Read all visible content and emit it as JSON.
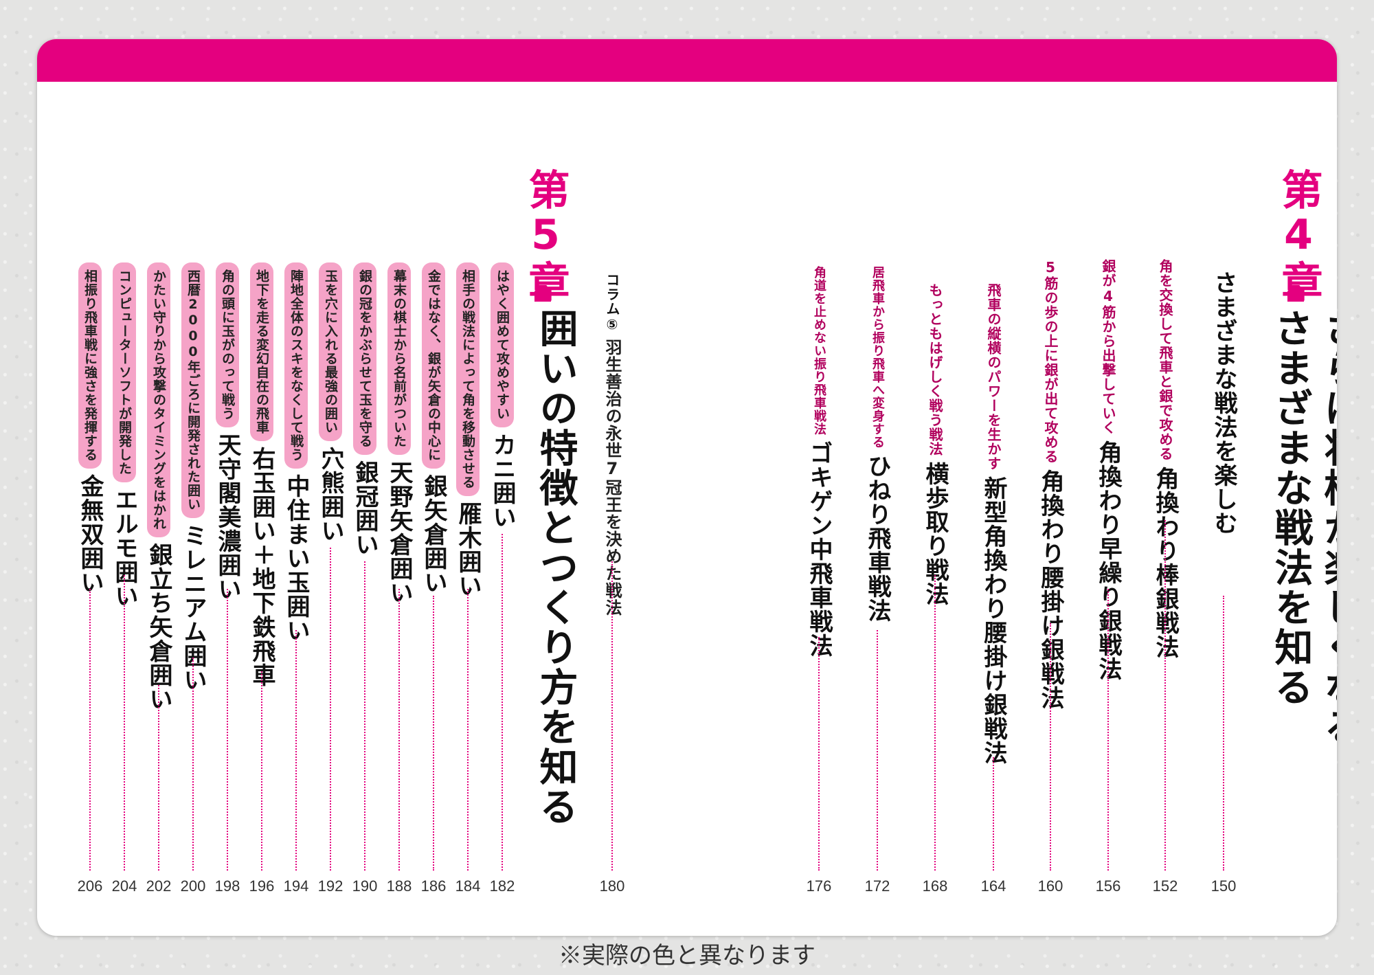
{
  "colors": {
    "accent": "#e4007f",
    "pill": "#f5a3c7",
    "sub_text": "#b1005d"
  },
  "disclaimer": "※実際の色と異なります",
  "chapter4": {
    "number": "第4章",
    "title_line1": "さらに将棋が楽しくなる",
    "title_line2": "さまざまな戦法を知る",
    "entries": [
      {
        "sub": "",
        "title": "さまざまな戦法を楽しむ",
        "page": "150"
      },
      {
        "sub": "角を交換して飛車と銀で攻める",
        "title": "角換わり棒銀戦法",
        "page": "152"
      },
      {
        "sub": "銀が4筋から出撃していく",
        "title": "角換わり早繰り銀戦法",
        "page": "156"
      },
      {
        "sub": "5筋の歩の上に銀が出て攻める",
        "title": "角換わり腰掛け銀戦法",
        "page": "160"
      },
      {
        "sub": "飛車の縦横のパワーを生かす",
        "title": "新型角換わり腰掛け銀戦法",
        "page": "164"
      },
      {
        "sub": "もっともはげしく戦う戦法",
        "title": "横歩取り戦法",
        "page": "168"
      },
      {
        "sub": "居飛車から振り飛車へ変身する",
        "title": "ひねり飛車戦法",
        "page": "172"
      },
      {
        "sub": "角道を止めない振り飛車戦法",
        "title": "ゴキゲン中飛車戦法",
        "page": "176"
      }
    ]
  },
  "column5": {
    "label": "コラム⑤",
    "title": "羽生善治の永世7冠王を決めた戦法",
    "page": "180"
  },
  "chapter5": {
    "number": "第5章",
    "title": "囲いの特徴とつくり方を知る",
    "entries": [
      {
        "sub": "はやく囲めて攻めやすい",
        "title": "カニ囲い",
        "page": "182"
      },
      {
        "sub": "相手の戦法によって角を移動させる",
        "title": "雁木囲い",
        "page": "184"
      },
      {
        "sub": "金ではなく、銀が矢倉の中心に",
        "title": "銀矢倉囲い",
        "page": "186"
      },
      {
        "sub": "幕末の棋士から名前がついた",
        "title": "天野矢倉囲い",
        "page": "188"
      },
      {
        "sub": "銀の冠をかぶらせて玉を守る",
        "title": "銀冠囲い",
        "page": "190"
      },
      {
        "sub": "玉を穴に入れる最強の囲い",
        "title": "穴熊囲い",
        "page": "192"
      },
      {
        "sub": "陣地全体のスキをなくして戦う",
        "title": "中住まい玉囲い",
        "page": "194"
      },
      {
        "sub": "地下を走る変幻自在の飛車",
        "title": "右玉囲い＋地下鉄飛車",
        "page": "196"
      },
      {
        "sub": "角の頭に玉がのって戦う",
        "title": "天守閣美濃囲い",
        "page": "198"
      },
      {
        "sub": "西暦2000年ごろに開発された囲い",
        "title": "ミレニアム囲い",
        "page": "200"
      },
      {
        "sub": "かたい守りから攻撃のタイミングをはかれ",
        "title": "銀立ち矢倉囲い",
        "page": "202"
      },
      {
        "sub": "コンピューターソフトが開発した",
        "title": "エルモ囲い",
        "page": "204"
      },
      {
        "sub": "相振り飛車戦に強さを発揮する",
        "title": "金無双囲い",
        "page": "206"
      }
    ]
  }
}
